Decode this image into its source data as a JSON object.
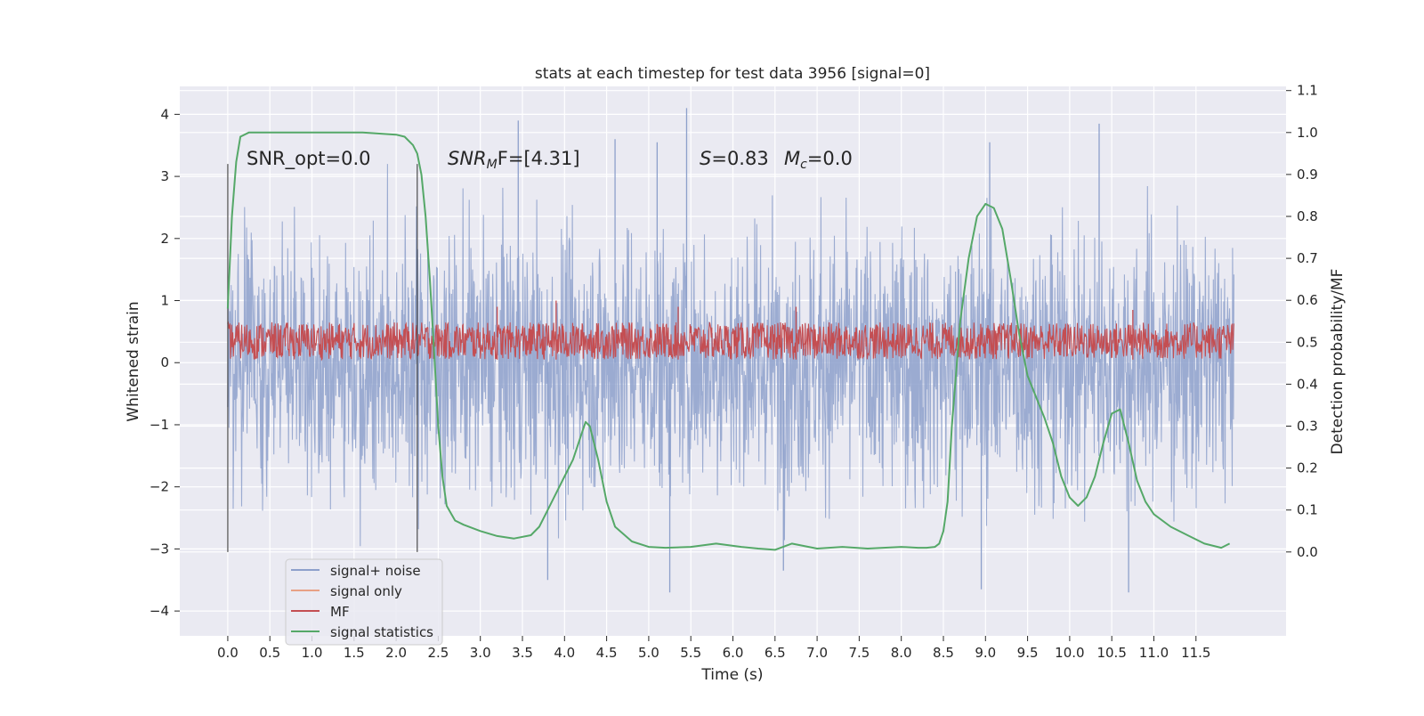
{
  "chart_data": {
    "type": "line",
    "title": "stats at each timestep for test data 3956 [signal=0]",
    "xlabel": "Time (s)",
    "ylabel_left": "Whitened strain",
    "ylabel_right": "Detection probability/MF",
    "xlim": [
      -0.57,
      12.57
    ],
    "ylim_left": [
      -4.4,
      4.45
    ],
    "ylim_right": [
      -0.2,
      1.11
    ],
    "x_ticks": [
      "0.0",
      "0.5",
      "1.0",
      "1.5",
      "2.0",
      "2.5",
      "3.0",
      "3.5",
      "4.0",
      "4.5",
      "5.0",
      "5.5",
      "6.0",
      "6.5",
      "7.0",
      "7.5",
      "8.0",
      "8.5",
      "9.0",
      "9.5",
      "10.0",
      "10.5",
      "11.0",
      "11.5"
    ],
    "y_ticks_left": [
      "4",
      "3",
      "2",
      "1",
      "0",
      "−1",
      "−2",
      "−3",
      "−4"
    ],
    "y_ticks_right": [
      "1.1",
      "1.0",
      "0.9",
      "0.8",
      "0.7",
      "0.6",
      "0.5",
      "0.4",
      "0.3",
      "0.2",
      "0.1",
      "0.0"
    ],
    "grid": true,
    "legend_position": "lower-left",
    "annotations": {
      "snr_opt": "SNR_opt=0.0",
      "snr_mf_sym": "SNR",
      "snr_mf_sub": "M",
      "snr_mf_rest": "F=[4.31]",
      "s_sym": "S",
      "s_rest": "=0.83",
      "mc_sym": "M",
      "mc_sub": "c",
      "mc_rest": "=0.0"
    },
    "vertical_markers_x": [
      0.0,
      2.25
    ],
    "series": [
      {
        "name": "signal+ noise",
        "color": "#8da0cb",
        "axis": "left",
        "x_range": [
          0.0,
          11.95
        ],
        "envelope_low": -3.1,
        "envelope_high": 3.2,
        "peaks": [
          {
            "x": 5.45,
            "y": 4.1
          },
          {
            "x": 3.45,
            "y": 3.9
          },
          {
            "x": 10.35,
            "y": 3.85
          },
          {
            "x": 4.6,
            "y": 3.6
          },
          {
            "x": 9.05,
            "y": 3.55
          },
          {
            "x": 5.1,
            "y": 3.55
          },
          {
            "x": 5.25,
            "y": -3.7
          },
          {
            "x": 8.95,
            "y": -3.65
          },
          {
            "x": 10.7,
            "y": -3.7
          },
          {
            "x": 3.8,
            "y": -3.5
          },
          {
            "x": 6.6,
            "y": -3.35
          }
        ]
      },
      {
        "name": "signal only",
        "color": "#e8a185",
        "axis": "left",
        "values": []
      },
      {
        "name": "MF",
        "color": "#c44e52",
        "axis": "left",
        "x_range": [
          0.0,
          11.95
        ],
        "band_low": 0.05,
        "band_high": 0.65,
        "peaks": [
          {
            "x": 3.9,
            "y": 1.0
          },
          {
            "x": 3.2,
            "y": 0.9
          },
          {
            "x": 5.35,
            "y": 0.9
          },
          {
            "x": 6.75,
            "y": 0.9
          },
          {
            "x": 10.75,
            "y": 0.85
          }
        ]
      },
      {
        "name": "signal statistics",
        "color": "#55a868",
        "axis": "right",
        "x": [
          0.0,
          0.05,
          0.1,
          0.15,
          0.25,
          0.4,
          0.8,
          1.2,
          1.6,
          2.0,
          2.1,
          2.2,
          2.25,
          2.3,
          2.35,
          2.4,
          2.45,
          2.5,
          2.55,
          2.6,
          2.7,
          2.8,
          3.0,
          3.2,
          3.4,
          3.6,
          3.7,
          3.8,
          3.9,
          4.0,
          4.1,
          4.2,
          4.25,
          4.3,
          4.4,
          4.5,
          4.6,
          4.8,
          5.0,
          5.2,
          5.5,
          5.8,
          6.1,
          6.3,
          6.5,
          6.7,
          7.0,
          7.3,
          7.6,
          8.0,
          8.2,
          8.3,
          8.4,
          8.45,
          8.5,
          8.55,
          8.6,
          8.7,
          8.8,
          8.9,
          9.0,
          9.1,
          9.2,
          9.3,
          9.4,
          9.5,
          9.6,
          9.7,
          9.8,
          9.9,
          10.0,
          10.1,
          10.2,
          10.3,
          10.4,
          10.5,
          10.6,
          10.7,
          10.8,
          10.9,
          11.0,
          11.2,
          11.4,
          11.6,
          11.8,
          11.9
        ],
        "values": [
          0.58,
          0.8,
          0.93,
          0.99,
          1.0,
          1.0,
          1.0,
          1.0,
          1.0,
          0.995,
          0.99,
          0.97,
          0.95,
          0.9,
          0.8,
          0.65,
          0.48,
          0.3,
          0.18,
          0.11,
          0.075,
          0.065,
          0.05,
          0.038,
          0.032,
          0.04,
          0.06,
          0.1,
          0.14,
          0.18,
          0.22,
          0.28,
          0.31,
          0.3,
          0.22,
          0.12,
          0.06,
          0.025,
          0.012,
          0.01,
          0.012,
          0.02,
          0.012,
          0.008,
          0.005,
          0.02,
          0.008,
          0.012,
          0.008,
          0.012,
          0.01,
          0.01,
          0.012,
          0.02,
          0.05,
          0.12,
          0.3,
          0.55,
          0.7,
          0.8,
          0.83,
          0.82,
          0.77,
          0.65,
          0.52,
          0.42,
          0.37,
          0.32,
          0.26,
          0.18,
          0.13,
          0.11,
          0.13,
          0.18,
          0.26,
          0.33,
          0.34,
          0.26,
          0.17,
          0.12,
          0.09,
          0.06,
          0.04,
          0.02,
          0.01,
          0.02
        ]
      }
    ]
  }
}
